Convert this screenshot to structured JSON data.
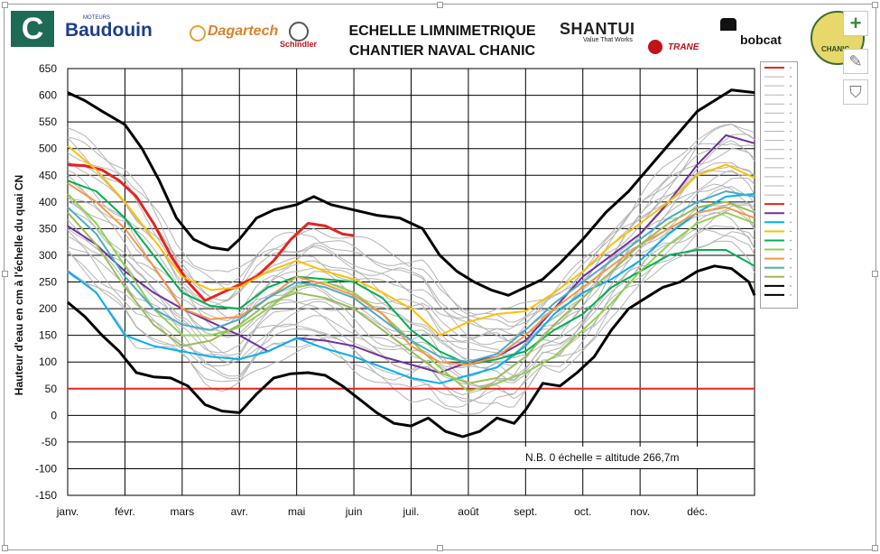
{
  "header": {
    "title_line1": "ECHELLE  LIMNIMETRIQUE",
    "title_line2": "CHANTIER NAVAL CHANIC",
    "logos": {
      "c_letter": "C",
      "baudouin_sub": "MOTEURS",
      "baudouin": "Baudouin",
      "dagartech": "Dagartech",
      "schindler": "Schindler",
      "shantui": "SHANTUI",
      "shantui_sub": "Value That Works",
      "trane": "TRANE",
      "bobcat": "bobcat",
      "chanic": "CHANIC"
    }
  },
  "toolbar": {
    "plus_icon": "+",
    "brush_icon": "✎",
    "filter_icon": "⛉"
  },
  "note": "N.B. 0 échelle = altitude 266,7m",
  "chart_data": {
    "type": "line",
    "ylabel": "Hauteur d'eau en cm à l'échelle du quai CN",
    "ylim": [
      -150,
      650
    ],
    "yticks": [
      -150,
      -100,
      -50,
      0,
      50,
      100,
      150,
      200,
      250,
      300,
      350,
      400,
      450,
      500,
      550,
      600,
      650
    ],
    "x_tick_labels": [
      "janv.",
      "févr.",
      "mars",
      "avr.",
      "mai",
      "juin",
      "juil.",
      "août",
      "sept.",
      "oct.",
      "nov.",
      "déc."
    ],
    "xlim": [
      1,
      13
    ],
    "grid": true,
    "legend_position": "right",
    "reference_line": {
      "y": 50,
      "color": "#e8231f"
    },
    "series": [
      {
        "role": "max",
        "color": "#000000",
        "width": 3,
        "x": [
          1,
          1.3,
          1.6,
          2.0,
          2.3,
          2.6,
          2.9,
          3.2,
          3.5,
          3.8,
          4.0,
          4.3,
          4.6,
          5.0,
          5.3,
          5.6,
          6.0,
          6.4,
          6.8,
          7.2,
          7.5,
          7.8,
          8.1,
          8.4,
          8.7,
          9.0,
          9.3,
          9.6,
          10.0,
          10.4,
          10.8,
          11.2,
          11.6,
          12.0,
          12.3,
          12.6,
          13.0
        ],
        "y": [
          605,
          590,
          570,
          545,
          500,
          440,
          370,
          330,
          315,
          310,
          330,
          370,
          385,
          395,
          410,
          395,
          385,
          375,
          370,
          350,
          300,
          270,
          250,
          235,
          225,
          240,
          255,
          285,
          330,
          380,
          420,
          470,
          520,
          570,
          590,
          610,
          605
        ]
      },
      {
        "role": "min",
        "color": "#000000",
        "width": 3,
        "x": [
          1,
          1.3,
          1.6,
          1.9,
          2.2,
          2.5,
          2.8,
          3.1,
          3.4,
          3.7,
          4.0,
          4.3,
          4.6,
          4.9,
          5.2,
          5.5,
          5.8,
          6.1,
          6.4,
          6.7,
          7.0,
          7.3,
          7.6,
          7.9,
          8.2,
          8.5,
          8.8,
          9.0,
          9.3,
          9.6,
          9.9,
          10.2,
          10.5,
          10.8,
          11.1,
          11.4,
          11.7,
          12.0,
          12.3,
          12.6,
          12.9,
          13.0
        ],
        "y": [
          212,
          185,
          150,
          120,
          80,
          72,
          70,
          55,
          20,
          8,
          5,
          40,
          70,
          78,
          80,
          75,
          55,
          30,
          5,
          -15,
          -20,
          -5,
          -30,
          -40,
          -30,
          -5,
          -15,
          10,
          60,
          55,
          80,
          110,
          160,
          200,
          220,
          240,
          250,
          270,
          280,
          275,
          250,
          225
        ]
      },
      {
        "color": "#e8231f",
        "width": 3,
        "x": [
          1,
          1.3,
          1.6,
          1.9,
          2.2,
          2.5,
          2.8,
          3.1,
          3.4,
          3.7,
          4.0,
          4.3,
          4.6,
          4.9,
          5.2,
          5.5,
          5.8,
          6.0
        ],
        "y": [
          470,
          468,
          460,
          440,
          410,
          360,
          300,
          250,
          215,
          230,
          245,
          260,
          290,
          330,
          360,
          355,
          340,
          337
        ]
      },
      {
        "color": "#7030a0",
        "width": 2,
        "x": [
          1,
          1.5,
          2.0,
          2.5,
          3.0,
          3.5,
          4.0,
          4.5,
          5.0,
          5.5,
          6.0,
          6.5,
          7.0,
          7.5,
          8.0,
          8.5,
          9.0,
          9.5,
          10.0,
          10.5,
          11.0,
          11.5,
          12.0,
          12.5,
          13.0
        ],
        "y": [
          355,
          320,
          270,
          230,
          200,
          175,
          150,
          120,
          145,
          140,
          130,
          110,
          95,
          80,
          100,
          110,
          140,
          200,
          260,
          300,
          340,
          400,
          470,
          525,
          510
        ]
      },
      {
        "color": "#00b0f0",
        "width": 2,
        "x": [
          1,
          1.5,
          2.0,
          2.5,
          3.0,
          3.5,
          4.0,
          4.5,
          5.0,
          5.5,
          6.0,
          6.5,
          7.0,
          7.5,
          8.0,
          8.5,
          9.0,
          9.5,
          10.0,
          10.5,
          11.0,
          11.5,
          12.0,
          12.5,
          13.0
        ],
        "y": [
          270,
          230,
          150,
          130,
          120,
          110,
          105,
          120,
          145,
          125,
          110,
          90,
          70,
          60,
          75,
          90,
          130,
          190,
          230,
          255,
          290,
          340,
          380,
          410,
          415
        ]
      },
      {
        "color": "#ffc000",
        "width": 2,
        "x": [
          1,
          1.5,
          2.0,
          2.5,
          3.0,
          3.5,
          4.0,
          4.5,
          5.0,
          5.5,
          6.0,
          6.5,
          7.0,
          7.5,
          8.0,
          8.5,
          9.0,
          9.5,
          10.0,
          10.5,
          11.0,
          11.5,
          12.0,
          12.5,
          13.0
        ],
        "y": [
          505,
          460,
          400,
          330,
          260,
          235,
          240,
          270,
          290,
          270,
          255,
          230,
          200,
          150,
          175,
          190,
          195,
          230,
          270,
          320,
          360,
          400,
          450,
          470,
          445
        ]
      },
      {
        "color": "#00b050",
        "width": 2,
        "x": [
          1,
          1.5,
          2.0,
          2.5,
          3.0,
          3.5,
          4.0,
          4.5,
          5.0,
          5.5,
          6.0,
          6.5,
          7.0,
          7.5,
          8.0,
          8.5,
          9.0,
          9.5,
          10.0,
          10.5,
          11.0,
          11.5,
          12.0,
          12.5,
          13.0
        ],
        "y": [
          440,
          420,
          370,
          300,
          230,
          205,
          200,
          240,
          260,
          255,
          250,
          220,
          160,
          120,
          95,
          105,
          120,
          160,
          190,
          240,
          270,
          300,
          310,
          310,
          280
        ]
      },
      {
        "color": "#92d050",
        "width": 2,
        "x": [
          1,
          1.5,
          2.0,
          2.5,
          3.0,
          3.5,
          4.0,
          4.5,
          5.0,
          5.5,
          6.0,
          6.5,
          7.0,
          7.5,
          8.0,
          8.5,
          9.0,
          9.5,
          10.0,
          10.5,
          11.0,
          11.5,
          12.0,
          12.5,
          13.0
        ],
        "y": [
          415,
          360,
          280,
          200,
          150,
          150,
          165,
          200,
          240,
          250,
          230,
          190,
          140,
          90,
          45,
          60,
          80,
          110,
          160,
          210,
          270,
          320,
          360,
          380,
          360
        ]
      },
      {
        "color": "#f79646",
        "width": 2,
        "x": [
          1,
          1.5,
          2.0,
          2.5,
          3.0,
          3.5,
          4.0,
          4.5,
          5.0,
          5.5,
          6.0,
          6.5,
          7.0,
          7.5,
          8.0,
          8.5,
          9.0,
          9.5,
          10.0,
          10.5,
          11.0,
          11.5,
          12.0,
          12.5,
          13.0
        ],
        "y": [
          435,
          400,
          350,
          280,
          200,
          180,
          185,
          220,
          260,
          245,
          225,
          190,
          130,
          100,
          95,
          110,
          150,
          200,
          240,
          280,
          320,
          350,
          380,
          390,
          370
        ]
      },
      {
        "color": "#4bacc6",
        "width": 2,
        "x": [
          1,
          1.5,
          2.0,
          2.5,
          3.0,
          3.5,
          4.0,
          4.5,
          5.0,
          5.5,
          6.0,
          6.5,
          7.0,
          7.5,
          8.0,
          8.5,
          9.0,
          9.5,
          10.0,
          10.5,
          11.0,
          11.5,
          12.0,
          12.5,
          13.0
        ],
        "y": [
          390,
          340,
          260,
          200,
          170,
          160,
          180,
          220,
          250,
          240,
          220,
          180,
          140,
          110,
          100,
          115,
          160,
          210,
          250,
          290,
          330,
          370,
          400,
          420,
          410
        ]
      },
      {
        "color": "#9bbb59",
        "width": 2,
        "x": [
          1,
          1.5,
          2.0,
          2.5,
          3.0,
          3.5,
          4.0,
          4.5,
          5.0,
          5.5,
          6.0,
          6.5,
          7.0,
          7.5,
          8.0,
          8.5,
          9.0,
          9.5,
          10.0,
          10.5,
          11.0,
          11.5,
          12.0,
          12.5,
          13.0
        ],
        "y": [
          380,
          320,
          240,
          170,
          130,
          140,
          170,
          210,
          230,
          220,
          200,
          160,
          120,
          80,
          60,
          70,
          110,
          170,
          220,
          270,
          320,
          360,
          390,
          400,
          380
        ]
      }
    ],
    "background_series_color": "#b4b4b4"
  }
}
